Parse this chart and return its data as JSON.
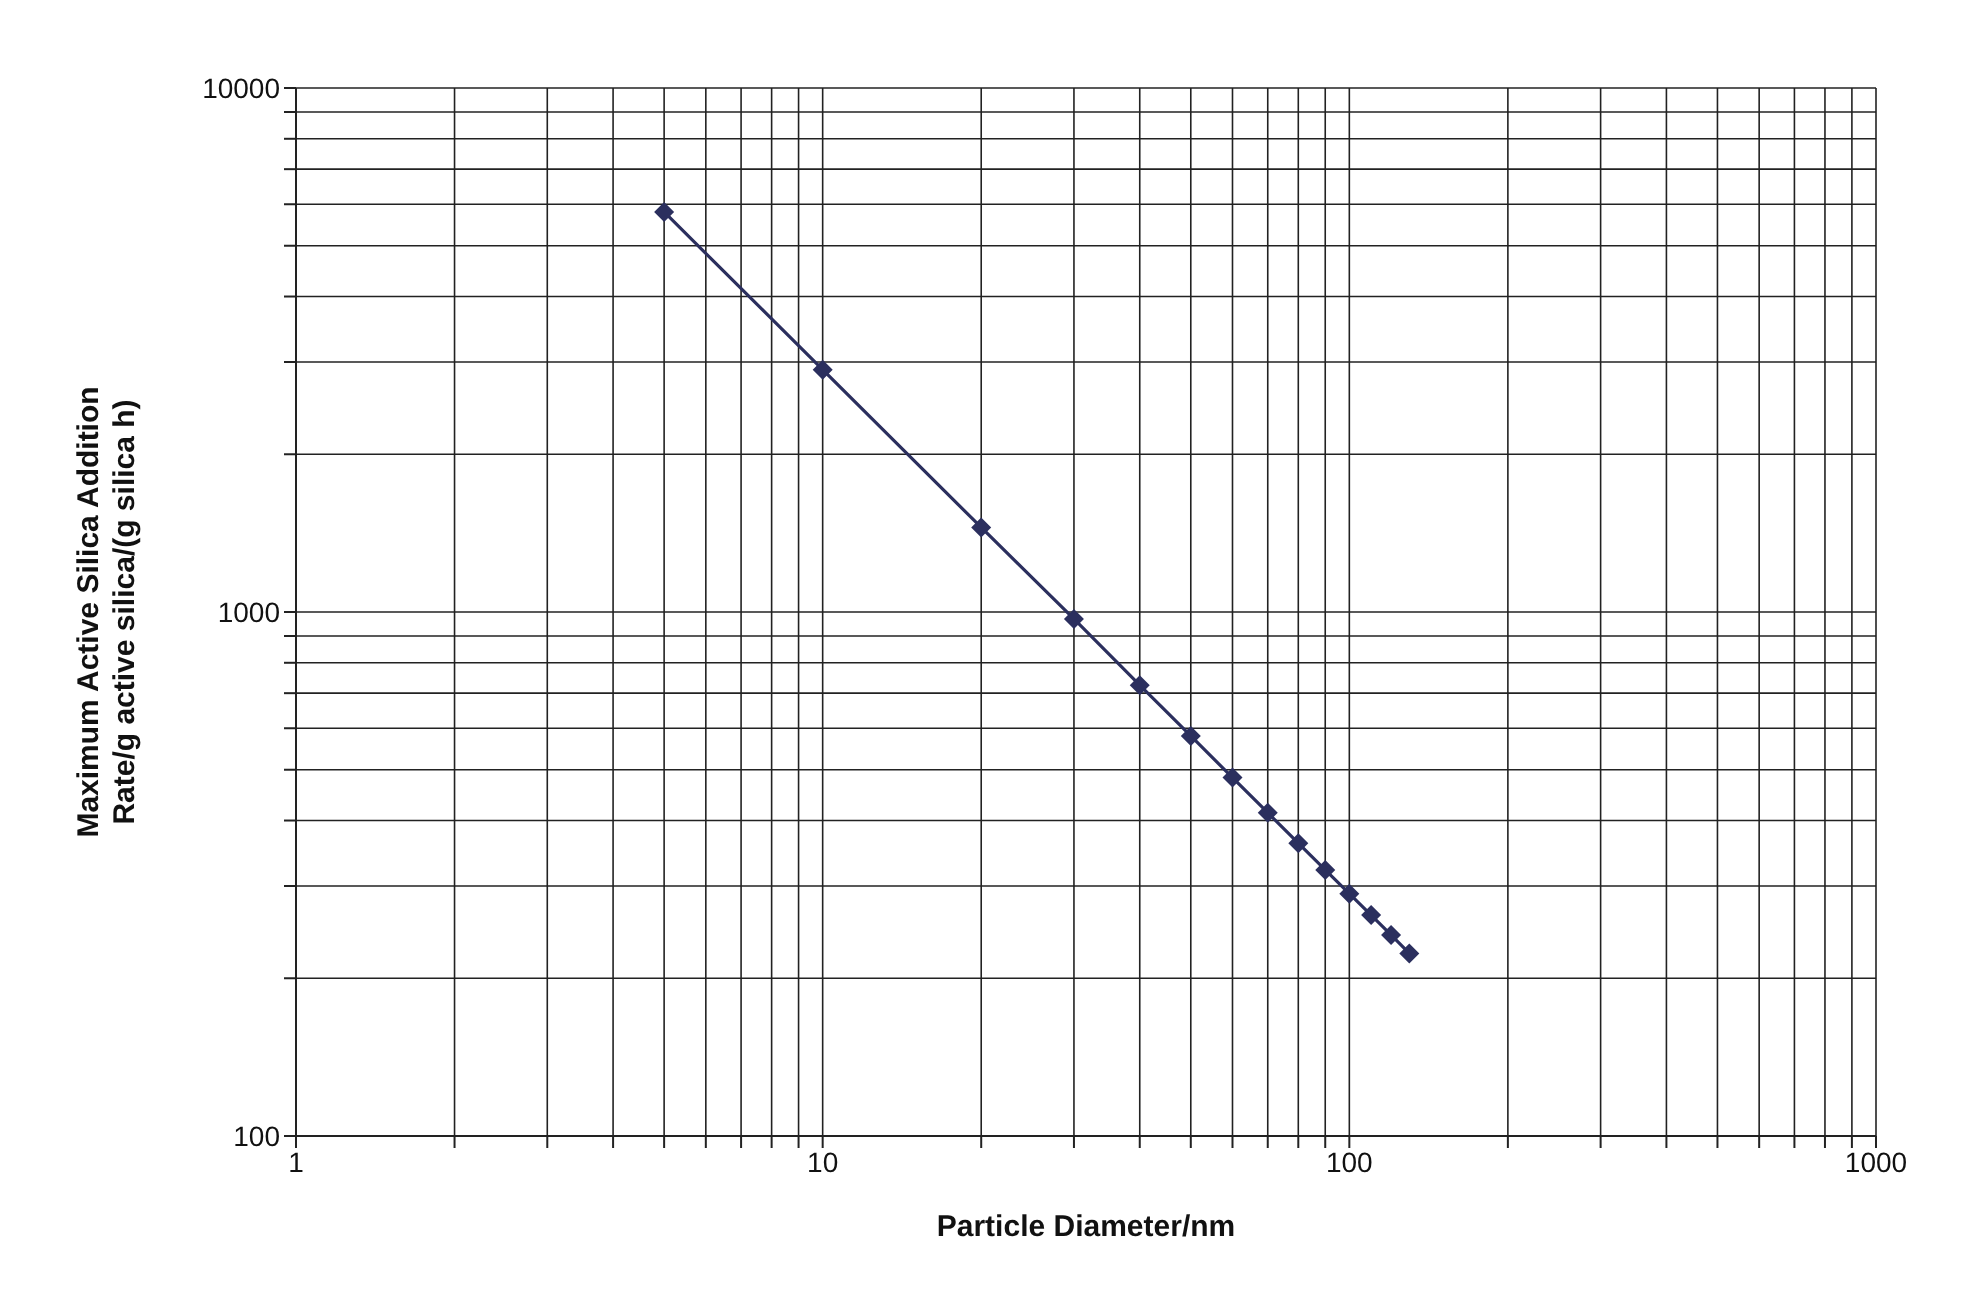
{
  "chart_data": {
    "type": "line",
    "xlabel": "Particle Diameter/nm",
    "ylabel": "Maximum Active Silica Addition Rate/g active silica/(g silica h)",
    "x": [
      5,
      10,
      20,
      30,
      40,
      50,
      60,
      70,
      80,
      90,
      100,
      110,
      120,
      130
    ],
    "series": [
      {
        "color": "#2b2f5e",
        "values": [
          5800,
          2900,
          1450,
          970,
          725,
          580,
          483,
          414,
          362,
          322,
          290,
          264,
          242,
          223
        ]
      }
    ],
    "log": "xy",
    "grid": true,
    "marker": "diamond",
    "line_style": "solid",
    "xlim": [
      1,
      1000
    ],
    "ylim": [
      100,
      10000
    ],
    "xticks": [
      1,
      {
        "value": 2,
        "label": null
      },
      {
        "value": 3,
        "label": null
      },
      {
        "value": 4,
        "label": null
      },
      {
        "value": 5,
        "label": null
      },
      {
        "value": 6,
        "label": null
      },
      {
        "value": 7,
        "label": null
      },
      {
        "value": 8,
        "label": null
      },
      {
        "value": 9,
        "label": null
      },
      10,
      {
        "value": 20,
        "label": null
      },
      {
        "value": 30,
        "label": null
      },
      {
        "value": 40,
        "label": null
      },
      {
        "value": 50,
        "label": null
      },
      {
        "value": 60,
        "label": null
      },
      {
        "value": 70,
        "label": null
      },
      {
        "value": 80,
        "label": null
      },
      {
        "value": 90,
        "label": null
      },
      100,
      {
        "value": 200,
        "label": null
      },
      {
        "value": 300,
        "label": null
      },
      {
        "value": 400,
        "label": null
      },
      {
        "value": 500,
        "label": null
      },
      {
        "value": 600,
        "label": null
      },
      {
        "value": 700,
        "label": null
      },
      {
        "value": 800,
        "label": null
      },
      {
        "value": 900,
        "label": null
      },
      1000
    ],
    "yticks": [
      100,
      {
        "value": 200,
        "label": null
      },
      {
        "value": 300,
        "label": null
      },
      {
        "value": 400,
        "label": null
      },
      {
        "value": 500,
        "label": null
      },
      {
        "value": 600,
        "label": null
      },
      {
        "value": 700,
        "label": null
      },
      {
        "value": 800,
        "label": null
      },
      {
        "value": 900,
        "label": null
      },
      1000,
      {
        "value": 2000,
        "label": null
      },
      {
        "value": 3000,
        "label": null
      },
      {
        "value": 4000,
        "label": null
      },
      {
        "value": 5000,
        "label": null
      },
      {
        "value": 6000,
        "label": null
      },
      {
        "value": 7000,
        "label": null
      },
      {
        "value": 8000,
        "label": null
      },
      {
        "value": 9000,
        "label": null
      },
      10000
    ]
  }
}
